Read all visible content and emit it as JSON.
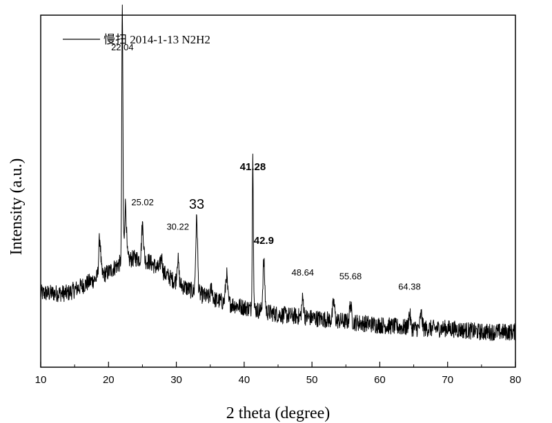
{
  "chart_data": {
    "type": "line",
    "title": "",
    "xlabel": "2 theta (degree)",
    "ylabel": "Intensity (a.u.)",
    "xlim": [
      10,
      80
    ],
    "ylim": [
      0,
      1
    ],
    "x_ticks": [
      10,
      20,
      30,
      40,
      50,
      60,
      70,
      80
    ],
    "y_tick_labels": false,
    "grid": false,
    "legend": {
      "placement": "top-left"
    },
    "series": [
      {
        "name": "慢扫 2014-1-13 N2H2",
        "color": "#000000",
        "baseline": [
          [
            10,
            0.21
          ],
          [
            14,
            0.21
          ],
          [
            17,
            0.24
          ],
          [
            20,
            0.27
          ],
          [
            22,
            0.3
          ],
          [
            24,
            0.31
          ],
          [
            26,
            0.3
          ],
          [
            28,
            0.27
          ],
          [
            30,
            0.24
          ],
          [
            33,
            0.21
          ],
          [
            36,
            0.19
          ],
          [
            40,
            0.17
          ],
          [
            45,
            0.15
          ],
          [
            50,
            0.14
          ],
          [
            55,
            0.13
          ],
          [
            60,
            0.12
          ],
          [
            65,
            0.11
          ],
          [
            70,
            0.11
          ],
          [
            75,
            0.1
          ],
          [
            80,
            0.1
          ]
        ],
        "peaks": [
          [
            18.7,
            0.11
          ],
          [
            22.04,
            0.72
          ],
          [
            22.5,
            0.16
          ],
          [
            25.02,
            0.1
          ],
          [
            27.8,
            0.04
          ],
          [
            30.22,
            0.07
          ],
          [
            33,
            0.21
          ],
          [
            35.2,
            0.03
          ],
          [
            37.4,
            0.08
          ],
          [
            41.28,
            0.43
          ],
          [
            42.9,
            0.14
          ],
          [
            48.64,
            0.05
          ],
          [
            53.2,
            0.05
          ],
          [
            55.68,
            0.05
          ],
          [
            64.38,
            0.04
          ],
          [
            66.1,
            0.04
          ]
        ],
        "noise_amplitude": 0.025
      }
    ],
    "peak_labels": [
      {
        "text": "22.04",
        "x": 22.04,
        "y": 0.9,
        "size": 13
      },
      {
        "text": "25.02",
        "x": 25.02,
        "y": 0.46,
        "size": 13
      },
      {
        "text": "30.22",
        "x": 30.22,
        "y": 0.39,
        "size": 13
      },
      {
        "text": "33",
        "x": 33,
        "y": 0.45,
        "size": 20
      },
      {
        "text": "41.28",
        "x": 41.28,
        "y": 0.56,
        "size": 15,
        "bold": true
      },
      {
        "text": "42.9",
        "x": 42.9,
        "y": 0.35,
        "size": 15,
        "bold": true
      },
      {
        "text": "48.64",
        "x": 48.64,
        "y": 0.26,
        "size": 13
      },
      {
        "text": "55.68",
        "x": 55.68,
        "y": 0.25,
        "size": 13
      },
      {
        "text": "64.38",
        "x": 64.38,
        "y": 0.22,
        "size": 13
      }
    ]
  }
}
